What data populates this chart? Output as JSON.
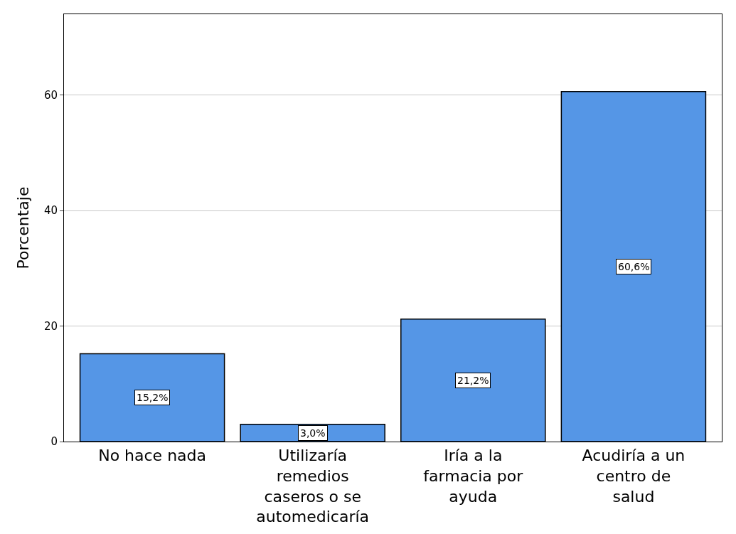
{
  "chart_data": {
    "type": "bar",
    "ylabel": "Porcentaje",
    "categories": [
      "No hace nada",
      "Utilizaría remedios caseros o se automedicaría",
      "Iría a la farmacia por ayuda",
      "Acudiría a un centro de salud"
    ],
    "values": [
      15.2,
      3.0,
      21.2,
      60.6
    ],
    "value_labels": [
      "15,2%",
      "3,0%",
      "21,2%",
      "60,6%"
    ],
    "color": "#5596e6",
    "ylim": [
      0,
      74
    ],
    "yticks": [
      0,
      20,
      40,
      60
    ],
    "grid": "y"
  }
}
